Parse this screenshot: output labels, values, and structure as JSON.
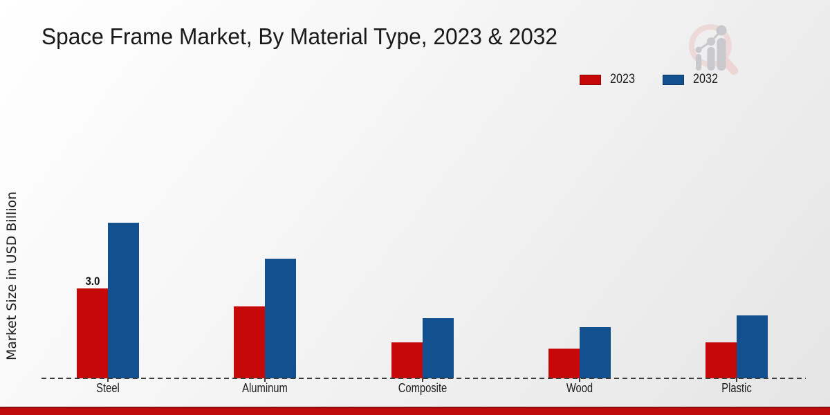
{
  "title": "Space Frame Market, By Material Type, 2023 & 2032",
  "y_axis_label": "Market Size in USD Billion",
  "legend": {
    "items": [
      {
        "label": "2023",
        "color": "#c70809"
      },
      {
        "label": "2032",
        "color": "#12508f"
      }
    ]
  },
  "chart_data": {
    "type": "bar",
    "title": "Space Frame Market, By Material Type, 2023 & 2032",
    "categories": [
      "Steel",
      "Aluminum",
      "Composite",
      "Wood",
      "Plastic"
    ],
    "series": [
      {
        "name": "2023",
        "color": "#c70809",
        "values": [
          3.0,
          2.4,
          1.2,
          1.0,
          1.2
        ]
      },
      {
        "name": "2032",
        "color": "#12508f",
        "values": [
          5.2,
          4.0,
          2.0,
          1.7,
          2.1
        ]
      }
    ],
    "bar_labels": [
      {
        "category": "Steel",
        "series": "2023",
        "text": "3.0"
      }
    ],
    "xlabel": "",
    "ylabel": "Market Size in USD Billion",
    "ylim": [
      0,
      6
    ],
    "grid": false,
    "baseline_style": "dashed",
    "legend_position": "top-right"
  },
  "branding": {
    "watermark_icon": "magnifier-growth-chart-logo",
    "footer_band_color": "#c00b0c",
    "footer_band_edge_color": "#8f0b0d"
  }
}
